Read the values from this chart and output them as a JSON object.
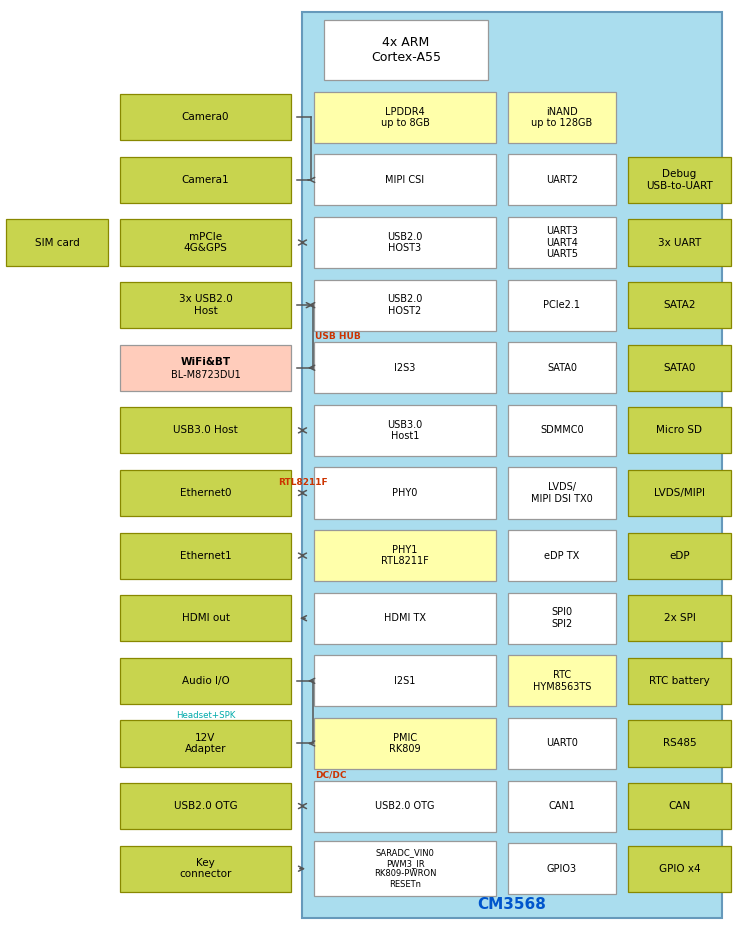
{
  "fig_width": 7.38,
  "fig_height": 9.46,
  "bg_color": "#ffffff",
  "soc_bg": "#aaddee",
  "soc_border": "#6699bb",
  "green_box": "#c8d44e",
  "green_box_border": "#888800",
  "white_box": "#ffffff",
  "white_box_border": "#999999",
  "yellow_box": "#ffffaa",
  "yellow_box_border": "#999999",
  "pink_box": "#ffccbb",
  "pink_box_border": "#999999",
  "soc_label": "CM3568",
  "soc_label_color": "#0055cc",
  "cpu_label": "4x ARM\nCortex-A55",
  "arrow_color": "#555555",
  "red_text_color": "#cc3300",
  "cyan_text_color": "#00aaaa",
  "left_blocks": [
    {
      "label": "Camera0",
      "row": 1,
      "color": "green"
    },
    {
      "label": "Camera1",
      "row": 2,
      "color": "green"
    },
    {
      "label": "mPCIe\n4G&GPS",
      "row": 3,
      "color": "green"
    },
    {
      "label": "3x USB2.0\nHost",
      "row": 4,
      "color": "green"
    },
    {
      "label": "WiFi&BT\nBL-M8723DU1",
      "row": 5,
      "color": "pink"
    },
    {
      "label": "USB3.0 Host",
      "row": 6,
      "color": "green"
    },
    {
      "label": "Ethernet0",
      "row": 7,
      "color": "green"
    },
    {
      "label": "Ethernet1",
      "row": 8,
      "color": "green"
    },
    {
      "label": "HDMI out",
      "row": 9,
      "color": "green"
    },
    {
      "label": "Audio I/O",
      "row": 10,
      "color": "green"
    },
    {
      "label": "12V\nAdapter",
      "row": 11,
      "color": "green"
    },
    {
      "label": "USB2.0 OTG",
      "row": 12,
      "color": "green"
    },
    {
      "label": "Key\nconnector",
      "row": 13,
      "color": "green"
    }
  ],
  "sim_card": {
    "label": "SIM card",
    "row": 3
  },
  "cl_blocks": [
    {
      "label": "LPDDR4\nup to 8GB",
      "row": 1,
      "color": "yellow"
    },
    {
      "label": "MIPI CSI",
      "row": 2,
      "color": "white"
    },
    {
      "label": "USB2.0\nHOST3",
      "row": 3,
      "color": "white"
    },
    {
      "label": "USB2.0\nHOST2",
      "row": 4,
      "color": "white"
    },
    {
      "label": "I2S3",
      "row": 5,
      "color": "white"
    },
    {
      "label": "USB3.0\nHost1",
      "row": 6,
      "color": "white"
    },
    {
      "label": "PHY0",
      "row": 7,
      "color": "white"
    },
    {
      "label": "PHY1\nRTL8211F",
      "row": 8,
      "color": "yellow"
    },
    {
      "label": "HDMI TX",
      "row": 9,
      "color": "white"
    },
    {
      "label": "I2S1",
      "row": 10,
      "color": "white"
    },
    {
      "label": "PMIC\nRK809",
      "row": 11,
      "color": "yellow"
    },
    {
      "label": "USB2.0 OTG",
      "row": 12,
      "color": "white"
    },
    {
      "label": "SARADC_VIN0\nPWM3_IR\nRK809-PWRON\nRESETn",
      "row": 13,
      "color": "white"
    }
  ],
  "cr_blocks": [
    {
      "label": "iNAND\nup to 128GB",
      "row": 1,
      "color": "yellow"
    },
    {
      "label": "UART2",
      "row": 2,
      "color": "white"
    },
    {
      "label": "UART3\nUART4\nUART5",
      "row": 3,
      "color": "white"
    },
    {
      "label": "PCIe2.1",
      "row": 4,
      "color": "white"
    },
    {
      "label": "SATA0",
      "row": 5,
      "color": "white"
    },
    {
      "label": "SDMMC0",
      "row": 6,
      "color": "white"
    },
    {
      "label": "LVDS/\nMIPI DSI TX0",
      "row": 7,
      "color": "white"
    },
    {
      "label": "eDP TX",
      "row": 8,
      "color": "white"
    },
    {
      "label": "SPI0\nSPI2",
      "row": 9,
      "color": "white"
    },
    {
      "label": "RTC\nHYM8563TS",
      "row": 10,
      "color": "yellow"
    },
    {
      "label": "UART0",
      "row": 11,
      "color": "white"
    },
    {
      "label": "CAN1",
      "row": 12,
      "color": "white"
    },
    {
      "label": "GPIO3",
      "row": 13,
      "color": "white"
    }
  ],
  "right_blocks": [
    {
      "label": "Debug\nUSB-to-UART",
      "row": 2,
      "color": "green"
    },
    {
      "label": "3x UART",
      "row": 3,
      "color": "green"
    },
    {
      "label": "SATA2",
      "row": 4,
      "color": "green"
    },
    {
      "label": "SATA0",
      "row": 5,
      "color": "green"
    },
    {
      "label": "Micro SD",
      "row": 6,
      "color": "green"
    },
    {
      "label": "LVDS/MIPI",
      "row": 7,
      "color": "green"
    },
    {
      "label": "eDP",
      "row": 8,
      "color": "green"
    },
    {
      "label": "2x SPI",
      "row": 9,
      "color": "green"
    },
    {
      "label": "RTC battery",
      "row": 10,
      "color": "green"
    },
    {
      "label": "RS485",
      "row": 11,
      "color": "green"
    },
    {
      "label": "CAN",
      "row": 12,
      "color": "green"
    },
    {
      "label": "GPIO x4",
      "row": 13,
      "color": "green"
    }
  ]
}
